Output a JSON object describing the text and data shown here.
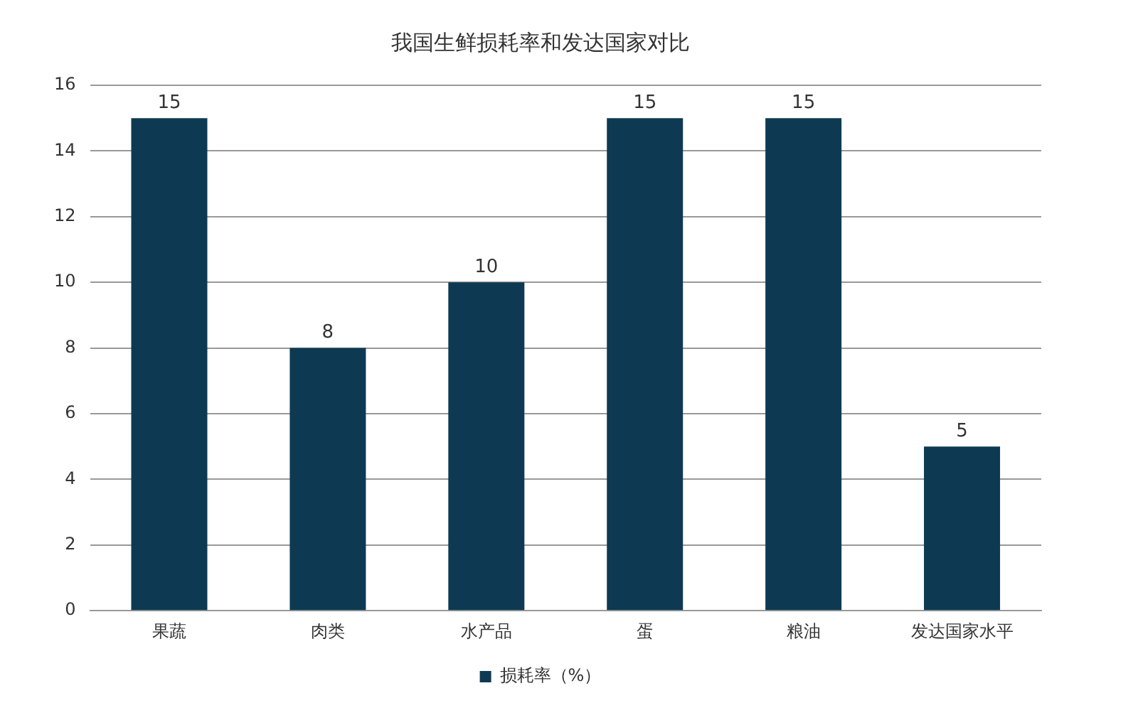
{
  "chart_data": {
    "type": "bar",
    "title": "我国生鲜损耗率和发达国家对比",
    "categories": [
      "果蔬",
      "肉类",
      "水产品",
      "蛋",
      "粮油",
      "发达国家水平"
    ],
    "series": [
      {
        "name": "损耗率（%）",
        "color": "#0d3a52",
        "values": [
          15,
          8,
          10,
          15,
          15,
          5
        ]
      }
    ],
    "ylim": [
      0,
      16
    ],
    "yticks": [
      0,
      2,
      4,
      6,
      8,
      10,
      12,
      14,
      16
    ],
    "grid": "y",
    "legend": "bottom",
    "data_labels": true
  }
}
